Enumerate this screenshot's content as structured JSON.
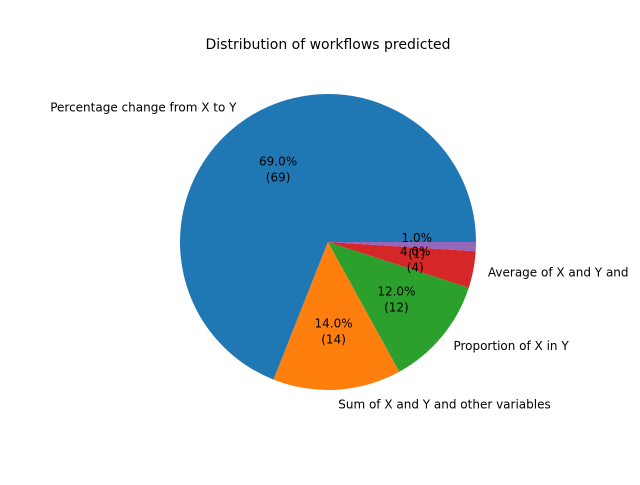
{
  "chart_data": {
    "type": "pie",
    "title": "Distribution of workflows predicted",
    "start_angle_deg": 0,
    "direction": "counterclockwise",
    "slices": [
      {
        "label": "Percentage change from X to Y",
        "value": 69,
        "percent_label": "69.0%",
        "count_label": "(69)",
        "color": "#1f77b4"
      },
      {
        "label": "Sum of X and Y and other variables",
        "value": 14,
        "percent_label": "14.0%",
        "count_label": "(14)",
        "color": "#ff7f0e"
      },
      {
        "label": "Proportion of X in Y",
        "value": 12,
        "percent_label": "12.0%",
        "count_label": "(12)",
        "color": "#2ca02c"
      },
      {
        "label": "Average of X and Y and",
        "value": 4,
        "percent_label": "4.0%",
        "count_label": "(4)",
        "color": "#d62728"
      },
      {
        "label": "",
        "value": 1,
        "percent_label": "1.0%",
        "count_label": "(1)",
        "color": "#9467bd"
      }
    ]
  }
}
